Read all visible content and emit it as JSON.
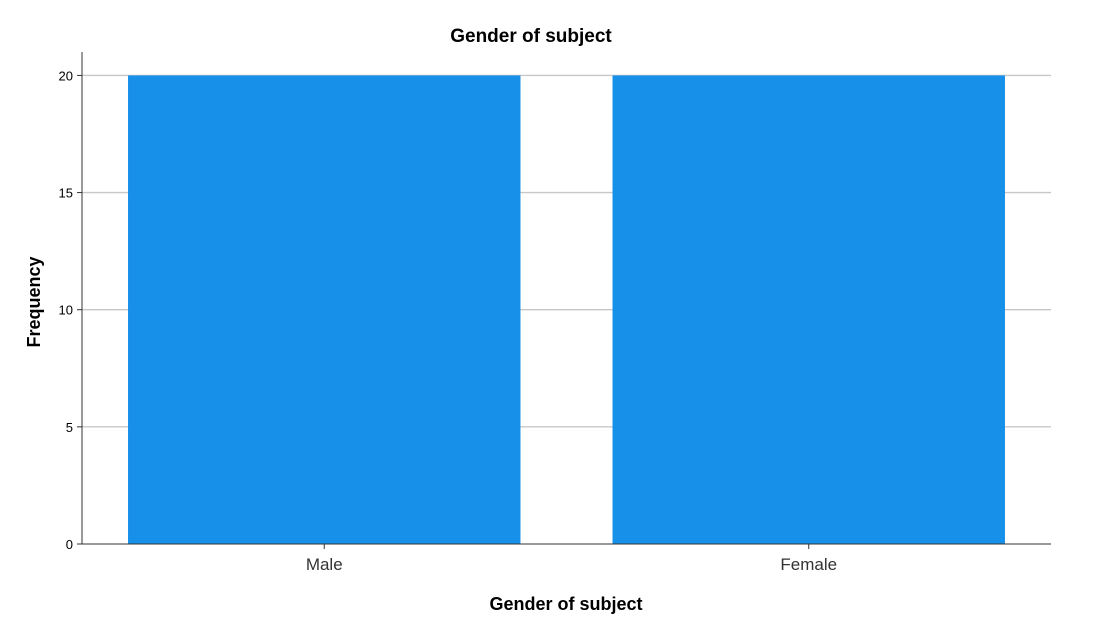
{
  "chart_data": {
    "type": "bar",
    "title": "Gender of subject",
    "xlabel": "Gender of subject",
    "ylabel": "Frequency",
    "categories": [
      "Male",
      "Female"
    ],
    "values": [
      20,
      20
    ],
    "ylim": [
      0,
      21
    ],
    "yticks": [
      0,
      5,
      10,
      15,
      20
    ],
    "grid": true,
    "bar_color": "#1690e8"
  }
}
